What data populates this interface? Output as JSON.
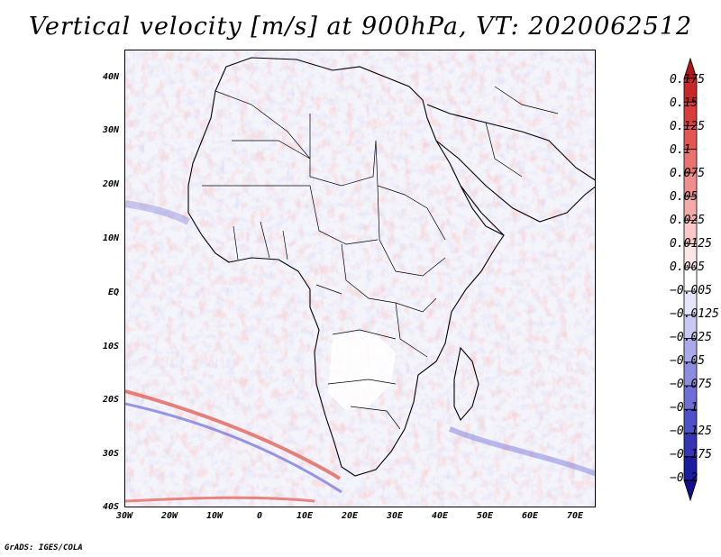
{
  "title": "Vertical velocity [m/s] at 900hPa, VT: 2020062512",
  "credit": "GrADS: IGES/COLA",
  "map": {
    "field": "vertical velocity",
    "level": "900hPa",
    "valid_time": "2020062512",
    "lon_range": [
      -30,
      75
    ],
    "lat_range": [
      -40,
      45
    ],
    "lat_ticks": [
      "40N",
      "30N",
      "20N",
      "10N",
      "EQ",
      "10S",
      "20S",
      "30S",
      "40S"
    ],
    "lon_ticks": [
      "30W",
      "20W",
      "10W",
      "0",
      "10E",
      "20E",
      "30E",
      "40E",
      "50E",
      "60E",
      "70E"
    ],
    "colors": {
      "positive": "#e05a50",
      "negative": "#6e6ed8",
      "neutral": "#ffffff",
      "boundaries": "#000000"
    }
  },
  "colorbar": {
    "labels": [
      "0.175",
      "0.15",
      "0.125",
      "0.1",
      "0.075",
      "0.05",
      "0.025",
      "0.0125",
      "0.005",
      "−0.005",
      "−0.0125",
      "−0.025",
      "−0.05",
      "−0.075",
      "−0.1",
      "−0.125",
      "−0.175",
      "−0.2"
    ],
    "colors": [
      "#b01818",
      "#c82828",
      "#d83c3c",
      "#e45656",
      "#ec7272",
      "#f08e8e",
      "#f5aaaa",
      "#f9c8c8",
      "#fde6e6",
      "#ffffff",
      "#e6e6fa",
      "#c8c8f2",
      "#aaaaea",
      "#8c8ce0",
      "#6e6ed6",
      "#5050c8",
      "#3434b4",
      "#1c1ca0",
      "#10108c"
    ]
  }
}
